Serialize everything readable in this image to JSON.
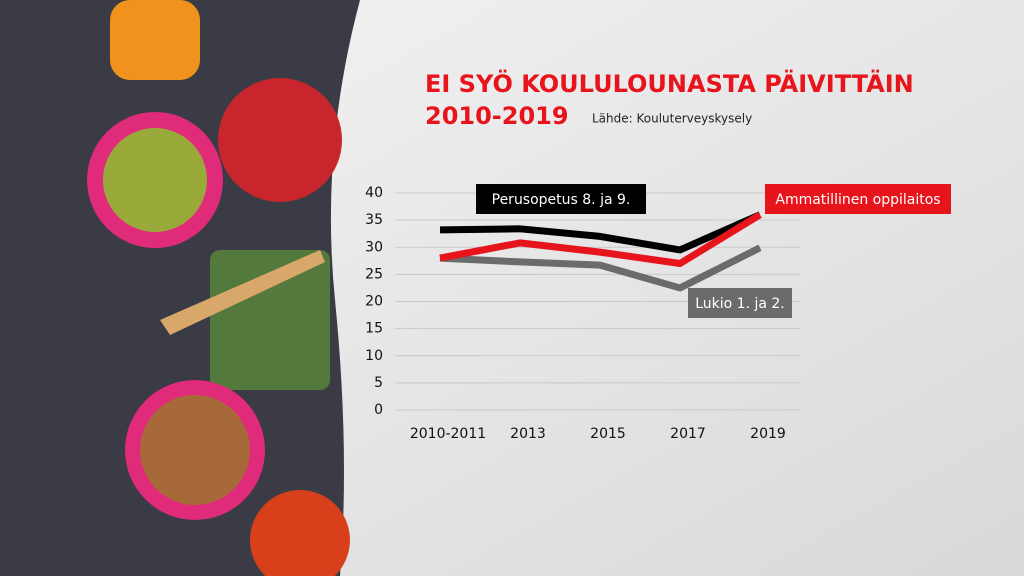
{
  "chart_data": {
    "type": "line",
    "title_lines": [
      "EI SYÖ KOULULOUNASTA PÄIVITTÄIN",
      "2010-2019"
    ],
    "source": "Lähde: Kouluterveyskysely",
    "categories": [
      "2010-2011",
      "2013",
      "2015",
      "2017",
      "2019"
    ],
    "series": [
      {
        "name": "Perusopetus 8. ja 9.",
        "color": "#000000",
        "values": [
          33.2,
          33.4,
          32,
          29.5,
          36
        ]
      },
      {
        "name": "Lukio 1. ja 2.",
        "color": "#6b6b6b",
        "values": [
          28,
          27.3,
          26.7,
          22.5,
          29.9
        ]
      },
      {
        "name": "Ammatillinen oppilaitos",
        "color": "#e8141c",
        "values": [
          28,
          30.8,
          29.1,
          27,
          36
        ]
      }
    ],
    "ylim": [
      0,
      40
    ],
    "yticks": [
      0,
      5,
      10,
      15,
      20,
      25,
      30,
      35,
      40
    ],
    "grid": true
  }
}
